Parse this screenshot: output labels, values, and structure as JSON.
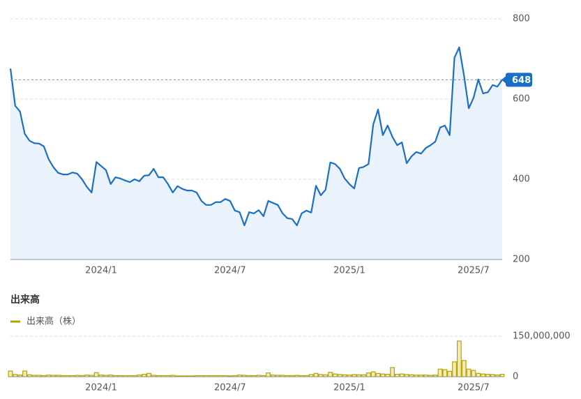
{
  "chart_data": [
    {
      "type": "line",
      "categories": [
        null,
        null,
        null,
        null,
        null,
        null,
        null,
        null,
        null,
        null,
        null,
        null,
        null,
        null,
        null,
        null,
        null,
        null,
        null,
        "2024/1",
        null,
        null,
        null,
        null,
        null,
        null,
        null,
        null,
        null,
        null,
        null,
        null,
        null,
        null,
        null,
        null,
        null,
        null,
        null,
        null,
        null,
        null,
        null,
        null,
        null,
        null,
        "2024/7",
        null,
        null,
        null,
        null,
        null,
        null,
        null,
        null,
        null,
        null,
        null,
        null,
        null,
        null,
        null,
        null,
        null,
        null,
        null,
        null,
        null,
        null,
        null,
        null,
        "2025/1",
        null,
        null,
        null,
        null,
        null,
        null,
        null,
        null,
        null,
        null,
        null,
        null,
        null,
        null,
        null,
        null,
        null,
        null,
        null,
        null,
        null,
        null,
        null,
        null,
        null,
        "2025/7",
        null,
        null,
        null,
        null,
        null,
        null
      ],
      "series": [
        {
          "color": "#1a6fc4",
          "values": [
            676,
            583,
            569,
            513,
            496,
            490,
            489,
            482,
            450,
            430,
            416,
            412,
            412,
            417,
            414,
            400,
            381,
            367,
            443,
            433,
            423,
            388,
            405,
            402,
            397,
            393,
            400,
            395,
            409,
            410,
            426,
            405,
            405,
            388,
            367,
            383,
            376,
            372,
            372,
            367,
            346,
            336,
            336,
            343,
            343,
            351,
            346,
            322,
            318,
            285,
            318,
            315,
            323,
            308,
            346,
            341,
            336,
            315,
            303,
            301,
            285,
            315,
            322,
            317,
            384,
            360,
            374,
            442,
            438,
            426,
            402,
            388,
            377,
            428,
            431,
            438,
            537,
            574,
            510,
            534,
            506,
            485,
            492,
            440,
            457,
            468,
            464,
            478,
            485,
            494,
            529,
            534,
            510,
            703,
            729,
            659,
            577,
            603,
            649,
            614,
            617,
            635,
            631,
            648
          ]
        }
      ],
      "ylim": [
        200,
        800
      ],
      "yticks": [
        200,
        400,
        600,
        800
      ],
      "grid": true
    },
    {
      "type": "bar",
      "title": "出来高",
      "categories": [
        null,
        null,
        null,
        null,
        null,
        null,
        null,
        null,
        null,
        null,
        null,
        null,
        null,
        null,
        null,
        null,
        null,
        null,
        null,
        "2024/1",
        null,
        null,
        null,
        null,
        null,
        null,
        null,
        null,
        null,
        null,
        null,
        null,
        null,
        null,
        null,
        null,
        null,
        null,
        null,
        null,
        null,
        null,
        null,
        null,
        null,
        null,
        "2024/7",
        null,
        null,
        null,
        null,
        null,
        null,
        null,
        null,
        null,
        null,
        null,
        null,
        null,
        null,
        null,
        null,
        null,
        null,
        null,
        null,
        null,
        null,
        null,
        null,
        "2025/1",
        null,
        null,
        null,
        null,
        null,
        null,
        null,
        null,
        null,
        null,
        null,
        null,
        null,
        null,
        null,
        null,
        null,
        null,
        null,
        null,
        null,
        null,
        null,
        null,
        null,
        "2025/7",
        null,
        null,
        null,
        null,
        null,
        null
      ],
      "series": [
        {
          "name": "出来高（株）",
          "color": "#b3a300",
          "values": [
            21000000,
            8000000,
            6000000,
            21000000,
            7000000,
            5000000,
            5000000,
            4000000,
            6000000,
            5000000,
            5000000,
            4000000,
            4000000,
            4000000,
            5000000,
            4000000,
            6000000,
            5000000,
            15000000,
            6000000,
            5000000,
            6000000,
            4000000,
            4000000,
            4000000,
            4000000,
            4000000,
            6000000,
            9000000,
            12000000,
            5000000,
            4000000,
            4000000,
            4000000,
            5000000,
            3000000,
            3000000,
            3000000,
            3000000,
            4000000,
            4000000,
            4000000,
            4000000,
            4000000,
            4000000,
            4000000,
            3000000,
            4000000,
            6000000,
            5000000,
            4000000,
            4000000,
            5000000,
            4000000,
            14000000,
            6000000,
            5000000,
            5000000,
            4000000,
            4000000,
            5000000,
            4000000,
            4000000,
            8000000,
            12000000,
            8000000,
            7000000,
            16000000,
            10000000,
            8000000,
            7000000,
            6000000,
            8000000,
            7000000,
            7000000,
            14000000,
            18000000,
            12000000,
            10000000,
            9000000,
            34000000,
            9000000,
            10000000,
            8000000,
            7000000,
            6000000,
            6000000,
            6000000,
            5000000,
            6000000,
            28000000,
            26000000,
            20000000,
            55000000,
            132000000,
            60000000,
            28000000,
            23000000,
            12000000,
            10000000,
            9000000,
            8000000,
            6000000,
            9000000
          ]
        }
      ],
      "ylim": [
        0,
        150000000
      ],
      "yticks": [
        0,
        {
          "value": 150000000,
          "label": "150,000,000"
        }
      ],
      "grid": true
    }
  ]
}
